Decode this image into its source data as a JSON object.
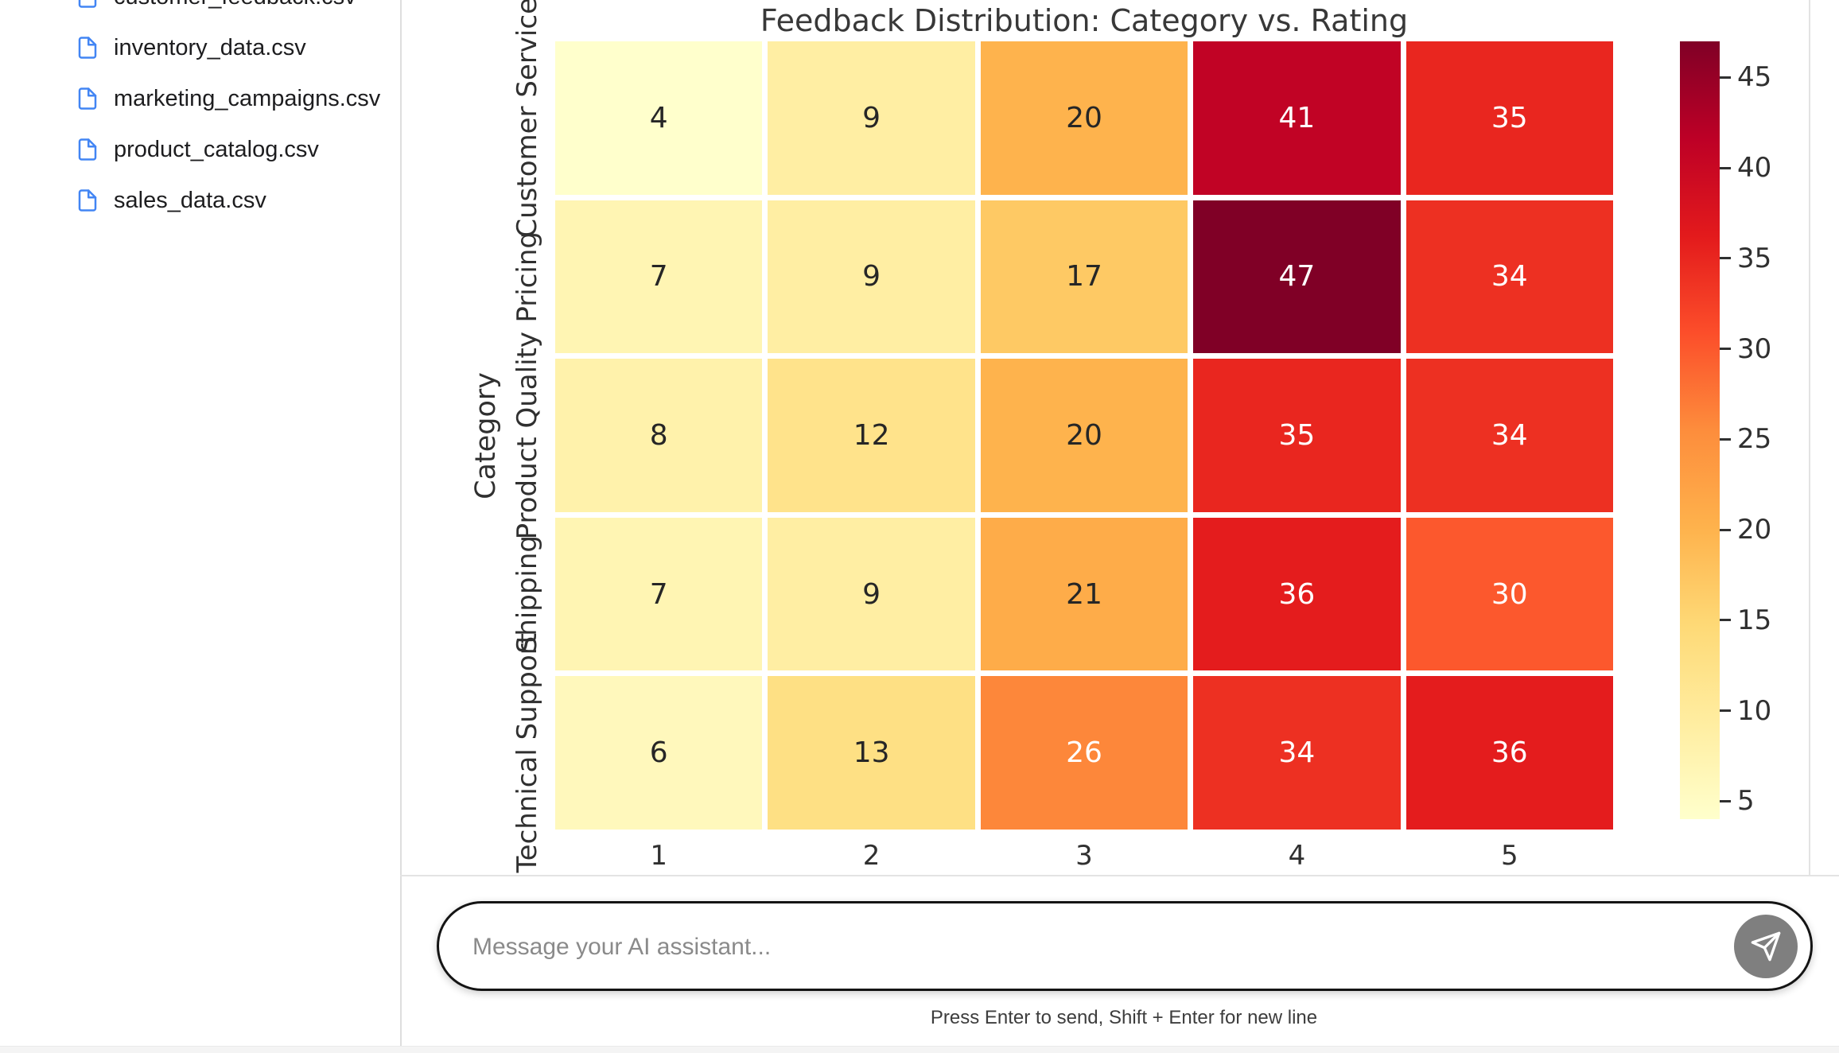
{
  "sidebar": {
    "files": [
      {
        "name": "customer_feedback.csv"
      },
      {
        "name": "inventory_data.csv"
      },
      {
        "name": "marketing_campaigns.csv"
      },
      {
        "name": "product_catalog.csv"
      },
      {
        "name": "sales_data.csv"
      }
    ]
  },
  "chart_data": {
    "type": "heatmap",
    "title": "Feedback Distribution: Category vs. Rating",
    "ylabel": "Category",
    "rows": [
      "Customer Service",
      "Pricing",
      "Product Quality",
      "Shipping",
      "Technical Support"
    ],
    "cols": [
      "1",
      "2",
      "3",
      "4",
      "5"
    ],
    "values": [
      [
        4,
        9,
        20,
        41,
        35
      ],
      [
        7,
        9,
        17,
        47,
        34
      ],
      [
        8,
        12,
        20,
        35,
        34
      ],
      [
        7,
        9,
        21,
        36,
        30
      ],
      [
        6,
        13,
        26,
        34,
        36
      ]
    ],
    "vmin": 4,
    "vmax": 47,
    "colormap": "YlOrRd",
    "colorbar_ticks": [
      5,
      10,
      15,
      20,
      25,
      30,
      35,
      40,
      45
    ],
    "annotated": true,
    "legend_position": "right-colorbar",
    "grid": false
  },
  "chat": {
    "input_placeholder": "Message your AI assistant...",
    "helper_text": "Press Enter to send, Shift + Enter for new line"
  },
  "colors": {
    "file_icon_blue": "#4285f4",
    "pill_border": "#141414",
    "send_button_gray": "#7f7f7f",
    "divider_gray": "#e3e3e3",
    "chart_text": "#303030"
  }
}
